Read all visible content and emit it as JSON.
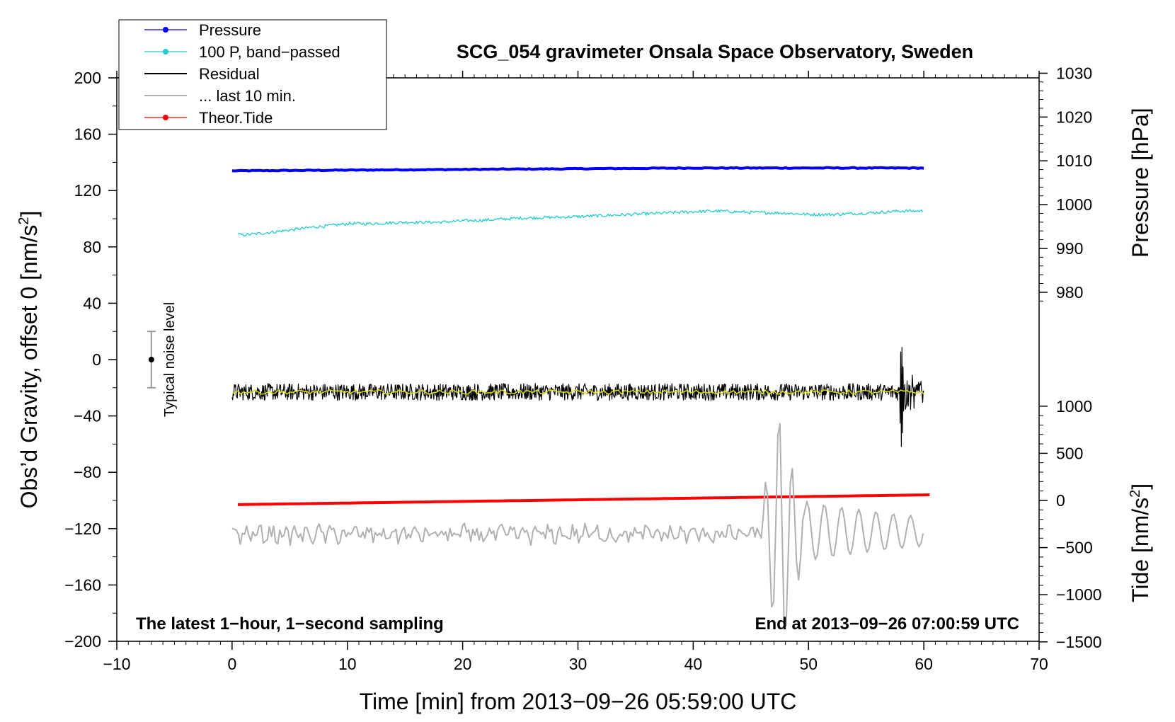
{
  "chart_data": {
    "type": "line",
    "title": "SCG_054 gravimeter Onsala Space Observatory, Sweden",
    "xlabel": "Time [min] from 2013−09−26 05:59:00 UTC",
    "ylabel": "Obs’d Gravity, offset 0 [nm/s²]",
    "ylabel_main": "Obs’d Gravity, offset 0 [nm/s",
    "ylabel_sup": "2",
    "ylabel_end": "]",
    "xlim": [
      -10,
      70
    ],
    "ylim": [
      -200,
      200
    ],
    "x_ticks": [
      -10,
      0,
      10,
      20,
      30,
      40,
      50,
      60,
      70
    ],
    "x_tick_labels": [
      "−10",
      "0",
      "10",
      "20",
      "30",
      "40",
      "50",
      "60",
      "70"
    ],
    "y_ticks": [
      -200,
      -160,
      -120,
      -80,
      -40,
      0,
      40,
      80,
      120,
      160,
      200
    ],
    "y_tick_labels": [
      "−200",
      "−160",
      "−120",
      "−80",
      "−40",
      "0",
      "40",
      "80",
      "120",
      "160",
      "200"
    ],
    "pressure_axis": {
      "label": "Pressure [hPa]",
      "ticks": [
        980,
        990,
        1000,
        1010,
        1020,
        1030
      ],
      "tick_labels": [
        "980",
        "990",
        "1000",
        "1010",
        "1020",
        "1030"
      ],
      "left_value_ref": [
        0,
        110
      ],
      "scale_per_hpa": 3.11
    },
    "tide_axis": {
      "label_main": "Tide [nm/s",
      "label_sup": "2",
      "label_end": "]",
      "ticks": [
        -1500,
        -1000,
        -500,
        0,
        500,
        1000
      ],
      "tick_labels": [
        "−1500",
        "−1000",
        "−500",
        "0",
        "500",
        "1000"
      ],
      "left_value_ref": [
        0,
        -100
      ],
      "scale_per_unit": 0.06693
    },
    "legend": {
      "placement": "top-left",
      "entries": [
        {
          "label": "Pressure",
          "color": "#0000ff",
          "marker": true
        },
        {
          "label": "100 P, band−passed",
          "color": "#22cccc",
          "marker": true
        },
        {
          "label": "Residual",
          "color": "#000000",
          "marker": false
        },
        {
          "label": "... last 10 min.",
          "color": "#b0b0b0",
          "marker": false
        },
        {
          "label": "Theor.Tide",
          "color": "#ff0000",
          "marker": true
        }
      ]
    },
    "notes": {
      "left": "The latest 1−hour, 1−second sampling",
      "right": "End at 2013−09−26 07:00:59 UTC",
      "noise": "Typical noise level"
    },
    "noise_bar": {
      "x": -7,
      "center": 0,
      "half_range": 20
    },
    "series": [
      {
        "name": "Pressure",
        "color": "#0000ff",
        "x": [
          0,
          10,
          20,
          30,
          40,
          50,
          60
        ],
        "y": [
          134,
          134.5,
          135,
          135.5,
          136,
          136,
          136
        ]
      },
      {
        "name": "100 P, band−passed",
        "color": "#22cccc",
        "x": [
          0,
          1,
          3,
          5,
          7,
          9,
          10,
          12,
          15,
          18,
          20,
          22,
          25,
          28,
          30,
          33,
          36,
          40,
          42,
          45,
          48,
          50,
          52,
          55,
          58,
          60
        ],
        "y": [
          89,
          88.5,
          90,
          92,
          94,
          95.5,
          96.5,
          96.5,
          97.5,
          97.5,
          98.5,
          99,
          100.5,
          101,
          101.5,
          102.5,
          103.5,
          105,
          105.5,
          104.5,
          104,
          103,
          103,
          104,
          105.5,
          105.5
        ]
      },
      {
        "name": "Residual",
        "color": "#000000",
        "x": [
          0,
          60
        ],
        "y": [
          -23,
          -23
        ]
      },
      {
        "name": "... last 10 min.",
        "color": "#b0b0b0",
        "x": [
          0,
          46,
          47,
          48,
          49,
          50,
          55,
          60
        ],
        "y": [
          -124,
          -124,
          -150,
          -55,
          -155,
          -100,
          -115,
          -130
        ]
      },
      {
        "name": "Theor.Tide",
        "color": "#ff0000",
        "x": [
          0,
          60.5
        ],
        "y": [
          -103,
          -96
        ]
      }
    ]
  }
}
